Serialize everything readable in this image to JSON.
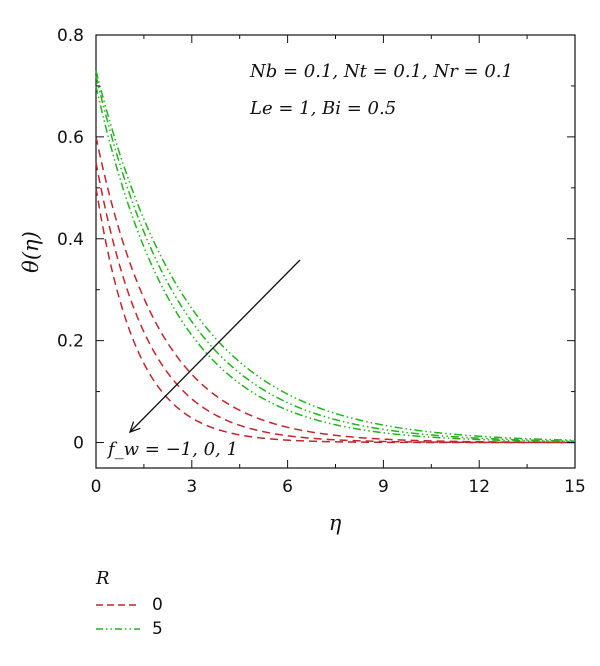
{
  "chart_data": {
    "type": "line",
    "xlabel": "η",
    "ylabel": "θ(η)",
    "xlim": [
      0,
      15
    ],
    "ylim": [
      -0.05,
      0.8
    ],
    "xticks": [
      0,
      3,
      6,
      9,
      12,
      15
    ],
    "yticks": [
      0,
      0.2,
      0.4,
      0.6,
      0.8
    ],
    "grid": false,
    "legend_title": "R",
    "legend_placement": "bottom-left-outside",
    "annotations": {
      "params_line1": "Nb = 0.1, Nt = 0.1, Nr = 0.1",
      "params_line2": "Le = 1, Bi = 0.5",
      "arrow_label": "f_w = −1, 0, 1"
    },
    "series": [
      {
        "name": "0",
        "style": "dashed",
        "color": "#c0262c",
        "curves": [
          {
            "fw": -1,
            "theta0": 0.6,
            "decay": 0.5
          },
          {
            "fw": 0,
            "theta0": 0.55,
            "decay": 0.62
          },
          {
            "fw": 1,
            "theta0": 0.5,
            "decay": 0.78
          }
        ]
      },
      {
        "name": "5",
        "style": "dash-dot-dot",
        "color": "#22b41e",
        "curves": [
          {
            "fw": -1,
            "theta0": 0.73,
            "decay": 0.34
          },
          {
            "fw": 0,
            "theta0": 0.72,
            "decay": 0.37
          },
          {
            "fw": 1,
            "theta0": 0.7,
            "decay": 0.4
          }
        ]
      }
    ]
  }
}
